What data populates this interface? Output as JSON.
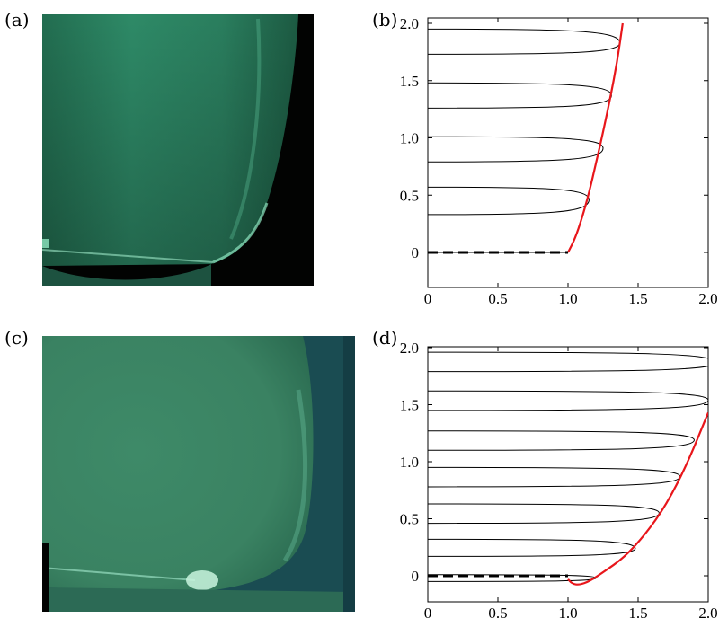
{
  "panels": {
    "a": {
      "label": "(a)"
    },
    "b": {
      "label": "(b)"
    },
    "c": {
      "label": "(c)"
    },
    "d": {
      "label": "(d)"
    }
  },
  "colors": {
    "curve": "#e8161b",
    "loops": "#000000",
    "dashed": "#000000",
    "photo_green": "#2f8f6a",
    "photo_dark": "#020302"
  },
  "chart_data": [
    {
      "panel": "b",
      "type": "line",
      "xlim": [
        0,
        2.0
      ],
      "ylim": [
        0,
        2.0
      ],
      "xticks": [
        "0",
        "0.5",
        "1.0",
        "1.5",
        "2.0"
      ],
      "yticks": [
        "0",
        "0.5",
        "1.0",
        "1.5",
        "2.0"
      ],
      "series": [
        {
          "role": "red-envelope",
          "x": [
            1.0,
            1.05,
            1.1,
            1.15,
            1.2,
            1.25,
            1.3,
            1.35,
            1.39
          ],
          "y": [
            0.0,
            0.12,
            0.3,
            0.52,
            0.78,
            1.05,
            1.34,
            1.66,
            2.0
          ]
        },
        {
          "role": "dashed-baseline",
          "x": [
            0,
            1.0
          ],
          "y": [
            0,
            0
          ]
        }
      ],
      "loops": [
        {
          "tip_x": 1.0,
          "tip_y": 0.0,
          "y_top": 0.0,
          "y_bottom": 0.0
        },
        {
          "tip_x": 1.15,
          "tip_y": 0.46,
          "y_top": 0.57,
          "y_bottom": 0.33
        },
        {
          "tip_x": 1.25,
          "tip_y": 0.91,
          "y_top": 1.01,
          "y_bottom": 0.79
        },
        {
          "tip_x": 1.31,
          "tip_y": 1.37,
          "y_top": 1.48,
          "y_bottom": 1.26
        },
        {
          "tip_x": 1.37,
          "tip_y": 1.83,
          "y_top": 1.95,
          "y_bottom": 1.73
        }
      ]
    },
    {
      "panel": "d",
      "type": "line",
      "xlim": [
        0,
        2.0
      ],
      "ylim": [
        -0.1,
        2.0
      ],
      "xticks": [
        "0",
        "0.5",
        "1.0",
        "1.5",
        "2.0"
      ],
      "yticks": [
        "0",
        "0.5",
        "1.0",
        "1.5",
        "2.0"
      ],
      "series": [
        {
          "role": "red-envelope",
          "x": [
            1.0,
            1.03,
            1.08,
            1.15,
            1.25,
            1.4,
            1.55,
            1.7,
            1.85,
            2.0
          ],
          "y": [
            -0.03,
            -0.07,
            -0.08,
            -0.05,
            0.03,
            0.16,
            0.36,
            0.62,
            0.98,
            1.43
          ]
        },
        {
          "role": "dashed-baseline",
          "x": [
            0,
            1.0
          ],
          "y": [
            0,
            0
          ]
        }
      ],
      "loops": [
        {
          "tip_x": 1.2,
          "tip_y": -0.02,
          "y_top": 0.01,
          "y_bottom": -0.05
        },
        {
          "tip_x": 1.48,
          "tip_y": 0.24,
          "y_top": 0.32,
          "y_bottom": 0.17
        },
        {
          "tip_x": 1.65,
          "tip_y": 0.55,
          "y_top": 0.63,
          "y_bottom": 0.46
        },
        {
          "tip_x": 1.8,
          "tip_y": 0.87,
          "y_top": 0.95,
          "y_bottom": 0.78
        },
        {
          "tip_x": 1.9,
          "tip_y": 1.19,
          "y_top": 1.27,
          "y_bottom": 1.1
        },
        {
          "tip_x": 2.0,
          "tip_y": 1.54,
          "y_top": 1.62,
          "y_bottom": 1.45
        },
        {
          "tip_x": 2.05,
          "tip_y": 1.87,
          "y_top": 1.96,
          "y_bottom": 1.79
        }
      ]
    }
  ]
}
